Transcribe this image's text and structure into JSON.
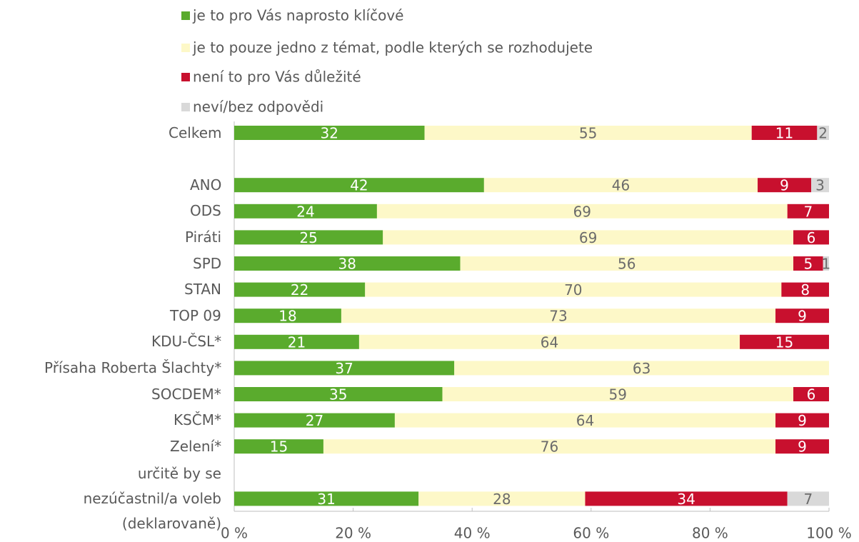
{
  "chart_data": {
    "type": "stacked-bar-horizontal",
    "categories": [
      "Celkem",
      null,
      "ANO",
      "ODS",
      "Piráti",
      "SPD",
      "STAN",
      "TOP 09",
      "KDU-ČSL*",
      "Přísaha Roberta Šlachty*",
      "SOCDEM*",
      "KSČM*",
      "Zelení*",
      null,
      "určitě by se nezúčastnil/a voleb (deklarovaně)"
    ],
    "series": [
      {
        "name": "je to pro Vás naprosto klíčové",
        "color": "#5aab2d",
        "label_color": "#ffffff",
        "values": [
          32,
          null,
          42,
          24,
          25,
          38,
          22,
          18,
          21,
          37,
          35,
          27,
          15,
          null,
          31
        ]
      },
      {
        "name": "je to pouze jedno z témat, podle kterých se rozhodujete",
        "color": "#fdf8c8",
        "label_color": "#6b6b6b",
        "values": [
          55,
          null,
          46,
          69,
          69,
          56,
          70,
          73,
          64,
          63,
          59,
          64,
          76,
          null,
          28
        ]
      },
      {
        "name": "není to pro Vás důležité",
        "color": "#c8102e",
        "label_color": "#ffffff",
        "values": [
          11,
          null,
          9,
          7,
          6,
          5,
          8,
          9,
          15,
          null,
          6,
          9,
          9,
          null,
          34
        ]
      },
      {
        "name": "neví/bez odpovědi",
        "color": "#d9d9d9",
        "label_color": "#6b6b6b",
        "values": [
          2,
          null,
          3,
          null,
          null,
          1,
          null,
          null,
          null,
          null,
          null,
          null,
          null,
          null,
          7
        ]
      }
    ],
    "xlim": [
      0,
      100
    ],
    "xticks": [
      {
        "value": 0,
        "label": "0 %"
      },
      {
        "value": 20,
        "label": "20 %"
      },
      {
        "value": 40,
        "label": "40 %"
      },
      {
        "value": 60,
        "label": "60 %"
      },
      {
        "value": 80,
        "label": "80 %"
      },
      {
        "value": 100,
        "label": "100 %"
      }
    ]
  }
}
